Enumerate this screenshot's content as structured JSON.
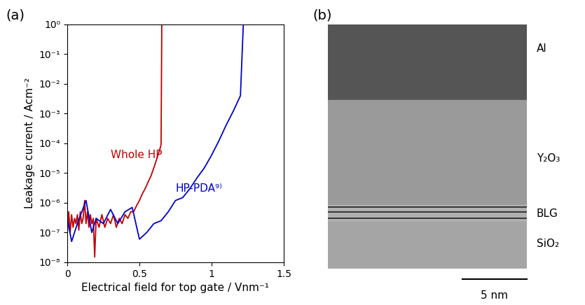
{
  "chart_data": {
    "type": "line",
    "title": "(a)",
    "x_label": "Electrical field for top gate / Vnm⁻¹",
    "y_label": "Leakage current / Acm⁻²",
    "log": "y",
    "xlim": [
      0,
      1.5
    ],
    "xticks": [
      0,
      0.5,
      1,
      1.5
    ],
    "ylim": [
      1e-08,
      1
    ],
    "yticks": [
      {
        "value": 1e-08,
        "label": "10⁻⁸"
      },
      {
        "value": 1e-07,
        "label": "10⁻⁷"
      },
      {
        "value": 1e-06,
        "label": "10⁻⁶"
      },
      {
        "value": 1e-05,
        "label": "10⁻⁵"
      },
      {
        "value": 0.0001,
        "label": "10⁻⁴"
      },
      {
        "value": 0.001,
        "label": "10⁻³"
      },
      {
        "value": 0.01,
        "label": "10⁻²"
      },
      {
        "value": 0.1,
        "label": "10⁻¹"
      },
      {
        "value": 1,
        "label": "10⁰"
      }
    ],
    "series": [
      {
        "name": "Whole HP",
        "color": "#c00000",
        "x": [
          0,
          0.01,
          0.02,
          0.03,
          0.04,
          0.05,
          0.06,
          0.07,
          0.08,
          0.09,
          0.1,
          0.11,
          0.12,
          0.13,
          0.14,
          0.15,
          0.16,
          0.17,
          0.18,
          0.19,
          0.2,
          0.22,
          0.24,
          0.26,
          0.28,
          0.3,
          0.32,
          0.34,
          0.36,
          0.38,
          0.4,
          0.42,
          0.44,
          0.46,
          0.48,
          0.5,
          0.52,
          0.54,
          0.56,
          0.58,
          0.6,
          0.62,
          0.64,
          0.65,
          0.655
        ],
        "values": [
          1e-07,
          5e-07,
          1e-07,
          4e-07,
          1.5e-07,
          3e-07,
          2e-07,
          4e-07,
          1.2e-07,
          5e-07,
          2e-07,
          3e-07,
          1.2e-06,
          2e-07,
          5e-07,
          1.5e-07,
          4e-07,
          2e-07,
          3e-07,
          1.5e-08,
          3e-07,
          1.5e-07,
          4e-07,
          1.5e-07,
          3e-07,
          2e-07,
          4e-07,
          1.5e-07,
          3e-07,
          2e-07,
          4e-07,
          3e-07,
          5e-07,
          5e-07,
          8e-07,
          1.2e-06,
          2e-06,
          3e-06,
          5e-06,
          8e-06,
          1.5e-05,
          3e-05,
          6e-05,
          9e-05,
          1
        ]
      },
      {
        "name": "HP-PDA⁹⁾",
        "color": "#0000cc",
        "x": [
          0,
          0.03,
          0.07,
          0.13,
          0.17,
          0.2,
          0.25,
          0.3,
          0.35,
          0.4,
          0.45,
          0.5,
          0.55,
          0.6,
          0.65,
          0.7,
          0.75,
          0.8,
          0.85,
          0.9,
          0.95,
          1.0,
          1.05,
          1.1,
          1.15,
          1.2,
          1.22
        ],
        "values": [
          3e-07,
          5e-08,
          2e-07,
          1.2e-06,
          1e-07,
          3e-07,
          2e-07,
          6e-07,
          2e-07,
          5e-07,
          7e-07,
          6e-08,
          1e-07,
          2e-07,
          2.5e-07,
          5e-07,
          1.2e-06,
          1.5e-06,
          3e-06,
          7e-06,
          1.5e-05,
          4e-05,
          0.00012,
          0.0004,
          0.0012,
          0.004,
          1
        ]
      }
    ]
  },
  "image": {
    "panel_label": "(b)",
    "layers": [
      "Al",
      "Y₂O₃",
      "BLG",
      "SiO₂"
    ],
    "scale_bar": "5 nm"
  }
}
